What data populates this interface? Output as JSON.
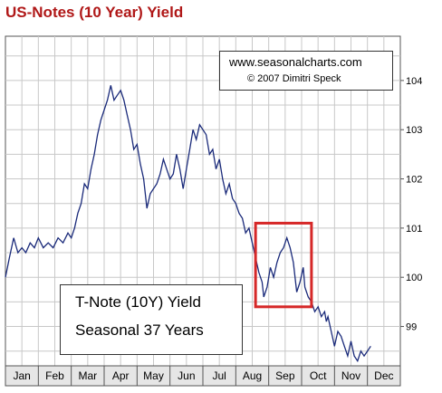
{
  "title": "US-Notes (10 Year) Yield",
  "credit": {
    "url": "www.seasonalcharts.com",
    "copyright": "© 2007   Dimitri Speck"
  },
  "legend": {
    "line1": "T-Note (10Y) Yield",
    "line2": "Seasonal 37 Years"
  },
  "colors": {
    "title": "#b01818",
    "line": "#1a2a7a",
    "highlight": "#d62828",
    "grid": "#c8c8c8",
    "axis_band": "#e6e6e6"
  },
  "chart_data": {
    "type": "line",
    "title": "US-Notes (10 Year) Yield",
    "xlabel": "",
    "ylabel": "",
    "x_categories": [
      "Jan",
      "Feb",
      "Mar",
      "Apr",
      "May",
      "Jun",
      "Jul",
      "Aug",
      "Sep",
      "Oct",
      "Nov",
      "Dec"
    ],
    "yticks": [
      99,
      100,
      101,
      102,
      103,
      104
    ],
    "ylim": [
      98.2,
      104.9
    ],
    "grid": true,
    "series": [
      {
        "name": "T-Note (10Y) Yield Seasonal 37 Years",
        "points": [
          [
            0.0,
            100.0
          ],
          [
            0.12,
            100.4
          ],
          [
            0.25,
            100.8
          ],
          [
            0.38,
            100.5
          ],
          [
            0.5,
            100.6
          ],
          [
            0.62,
            100.5
          ],
          [
            0.75,
            100.7
          ],
          [
            0.88,
            100.6
          ],
          [
            1.0,
            100.8
          ],
          [
            1.15,
            100.6
          ],
          [
            1.3,
            100.7
          ],
          [
            1.45,
            100.6
          ],
          [
            1.6,
            100.8
          ],
          [
            1.75,
            100.7
          ],
          [
            1.9,
            100.9
          ],
          [
            2.0,
            100.8
          ],
          [
            2.1,
            101.0
          ],
          [
            2.2,
            101.3
          ],
          [
            2.3,
            101.5
          ],
          [
            2.4,
            101.9
          ],
          [
            2.5,
            101.8
          ],
          [
            2.6,
            102.2
          ],
          [
            2.7,
            102.5
          ],
          [
            2.8,
            102.9
          ],
          [
            2.9,
            103.2
          ],
          [
            3.0,
            103.4
          ],
          [
            3.1,
            103.6
          ],
          [
            3.2,
            103.9
          ],
          [
            3.3,
            103.6
          ],
          [
            3.4,
            103.7
          ],
          [
            3.5,
            103.8
          ],
          [
            3.6,
            103.6
          ],
          [
            3.7,
            103.3
          ],
          [
            3.8,
            103.0
          ],
          [
            3.9,
            102.6
          ],
          [
            4.0,
            102.7
          ],
          [
            4.1,
            102.3
          ],
          [
            4.2,
            102.0
          ],
          [
            4.3,
            101.4
          ],
          [
            4.4,
            101.7
          ],
          [
            4.5,
            101.8
          ],
          [
            4.6,
            101.9
          ],
          [
            4.7,
            102.1
          ],
          [
            4.8,
            102.4
          ],
          [
            4.9,
            102.2
          ],
          [
            5.0,
            102.0
          ],
          [
            5.1,
            102.1
          ],
          [
            5.2,
            102.5
          ],
          [
            5.3,
            102.2
          ],
          [
            5.4,
            101.8
          ],
          [
            5.5,
            102.2
          ],
          [
            5.6,
            102.6
          ],
          [
            5.7,
            103.0
          ],
          [
            5.8,
            102.8
          ],
          [
            5.9,
            103.1
          ],
          [
            6.0,
            103.0
          ],
          [
            6.1,
            102.9
          ],
          [
            6.2,
            102.5
          ],
          [
            6.3,
            102.6
          ],
          [
            6.4,
            102.2
          ],
          [
            6.5,
            102.4
          ],
          [
            6.6,
            102.0
          ],
          [
            6.7,
            101.7
          ],
          [
            6.8,
            101.9
          ],
          [
            6.9,
            101.6
          ],
          [
            7.0,
            101.5
          ],
          [
            7.1,
            101.3
          ],
          [
            7.2,
            101.2
          ],
          [
            7.3,
            100.9
          ],
          [
            7.4,
            101.0
          ],
          [
            7.5,
            100.7
          ],
          [
            7.6,
            100.4
          ],
          [
            7.7,
            100.1
          ],
          [
            7.8,
            99.9
          ],
          [
            7.85,
            99.6
          ],
          [
            7.95,
            99.8
          ],
          [
            8.05,
            100.2
          ],
          [
            8.15,
            100.0
          ],
          [
            8.25,
            100.3
          ],
          [
            8.35,
            100.5
          ],
          [
            8.45,
            100.6
          ],
          [
            8.55,
            100.8
          ],
          [
            8.65,
            100.6
          ],
          [
            8.75,
            100.3
          ],
          [
            8.85,
            99.7
          ],
          [
            8.95,
            99.9
          ],
          [
            9.05,
            100.2
          ],
          [
            9.1,
            99.8
          ],
          [
            9.2,
            99.6
          ],
          [
            9.3,
            99.5
          ],
          [
            9.4,
            99.3
          ],
          [
            9.5,
            99.4
          ],
          [
            9.6,
            99.2
          ],
          [
            9.7,
            99.3
          ],
          [
            9.75,
            99.1
          ],
          [
            9.8,
            99.2
          ],
          [
            9.9,
            98.9
          ],
          [
            10.0,
            98.6
          ],
          [
            10.1,
            98.9
          ],
          [
            10.2,
            98.8
          ],
          [
            10.3,
            98.6
          ],
          [
            10.4,
            98.4
          ],
          [
            10.5,
            98.7
          ],
          [
            10.6,
            98.4
          ],
          [
            10.7,
            98.3
          ],
          [
            10.8,
            98.5
          ],
          [
            10.9,
            98.4
          ],
          [
            11.0,
            98.5
          ],
          [
            11.1,
            98.6
          ]
        ]
      }
    ],
    "highlight_box": {
      "x_range": [
        7.6,
        9.3
      ],
      "y_range": [
        99.4,
        101.1
      ]
    }
  }
}
